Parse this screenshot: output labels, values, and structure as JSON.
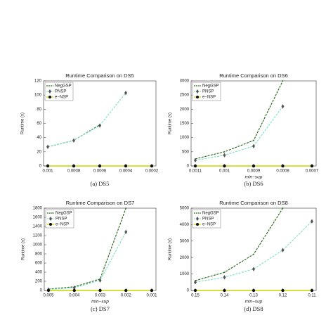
{
  "chart_data": [
    {
      "type": "line",
      "title": "Runtime Comparison on DS5",
      "caption": "(a) DS5",
      "ylabel": "Runtime (s)",
      "categories": [
        "0.001",
        "0.0008",
        "0.0006",
        "0.0004",
        "0.0002"
      ],
      "ylim": [
        0,
        120
      ],
      "yticks": [
        0,
        20,
        40,
        60,
        80,
        100,
        120
      ],
      "series": [
        {
          "name": "NegGSP",
          "color": "#2e6b1e",
          "marker": "none",
          "values": [
            27,
            36,
            58,
            null,
            null
          ]
        },
        {
          "name": "PNSP",
          "color": "#86e3c8",
          "marker": "diamond",
          "values": [
            27,
            36,
            57,
            103,
            null
          ]
        },
        {
          "name": "e−NSP",
          "color": "#c9d400",
          "marker": "circle",
          "values": [
            0,
            0,
            0,
            0,
            0
          ]
        }
      ]
    },
    {
      "type": "line",
      "title": "Runtime Comparison on DS6",
      "caption": "(b) DS6",
      "ylabel": "Runtime (s)",
      "xlabel": "min−sup",
      "categories": [
        "0.0011",
        "0.001",
        "0.0009",
        "0.0008",
        "0.0007"
      ],
      "ylim": [
        0,
        3000
      ],
      "yticks": [
        0,
        500,
        1000,
        1500,
        2000,
        2500,
        3000
      ],
      "series": [
        {
          "name": "NegGSP",
          "color": "#2e6b1e",
          "marker": "none",
          "values": [
            250,
            500,
            900,
            3000,
            null
          ]
        },
        {
          "name": "PNSP",
          "color": "#86e3c8",
          "marker": "diamond",
          "values": [
            200,
            380,
            700,
            2100,
            null
          ]
        },
        {
          "name": "e−NSP",
          "color": "#c9d400",
          "marker": "circle",
          "values": [
            0,
            0,
            0,
            0,
            0
          ]
        }
      ]
    },
    {
      "type": "line",
      "title": "Runtime Comparison on DS7",
      "caption": "(c) DS7",
      "ylabel": "Runtime (s)",
      "xlabel": "min−sup",
      "categories": [
        "0.005",
        "0.004",
        "0.003",
        "0.002",
        "0.001"
      ],
      "ylim": [
        0,
        1800
      ],
      "yticks": [
        0,
        200,
        400,
        600,
        800,
        1000,
        1200,
        1400,
        1600,
        1800
      ],
      "series": [
        {
          "name": "NegGSP",
          "color": "#2e6b1e",
          "marker": "none",
          "values": [
            30,
            80,
            250,
            1800,
            null
          ]
        },
        {
          "name": "PNSP",
          "color": "#86e3c8",
          "marker": "diamond",
          "values": [
            20,
            60,
            220,
            1280,
            null
          ]
        },
        {
          "name": "e−NSP",
          "color": "#c9d400",
          "marker": "circle",
          "values": [
            0,
            0,
            0,
            0,
            0
          ]
        }
      ]
    },
    {
      "type": "line",
      "title": "Runtime Comparison on DS8",
      "caption": "(d) DS8",
      "ylabel": "Runtime (s)",
      "xlabel": "min−sup",
      "categories": [
        "0.15",
        "0.14",
        "0.13",
        "0.12",
        "0.11"
      ],
      "ylim": [
        0,
        5000
      ],
      "yticks": [
        0,
        1000,
        2000,
        3000,
        4000,
        5000
      ],
      "series": [
        {
          "name": "NegGSP",
          "color": "#2e6b1e",
          "marker": "none",
          "values": [
            600,
            1100,
            2200,
            5000,
            null
          ]
        },
        {
          "name": "PNSP",
          "color": "#86e3c8",
          "marker": "diamond",
          "values": [
            500,
            800,
            1300,
            2450,
            4200
          ]
        },
        {
          "name": "e−NSP",
          "color": "#c9d400",
          "marker": "circle",
          "values": [
            0,
            0,
            0,
            0,
            0
          ]
        }
      ]
    }
  ]
}
